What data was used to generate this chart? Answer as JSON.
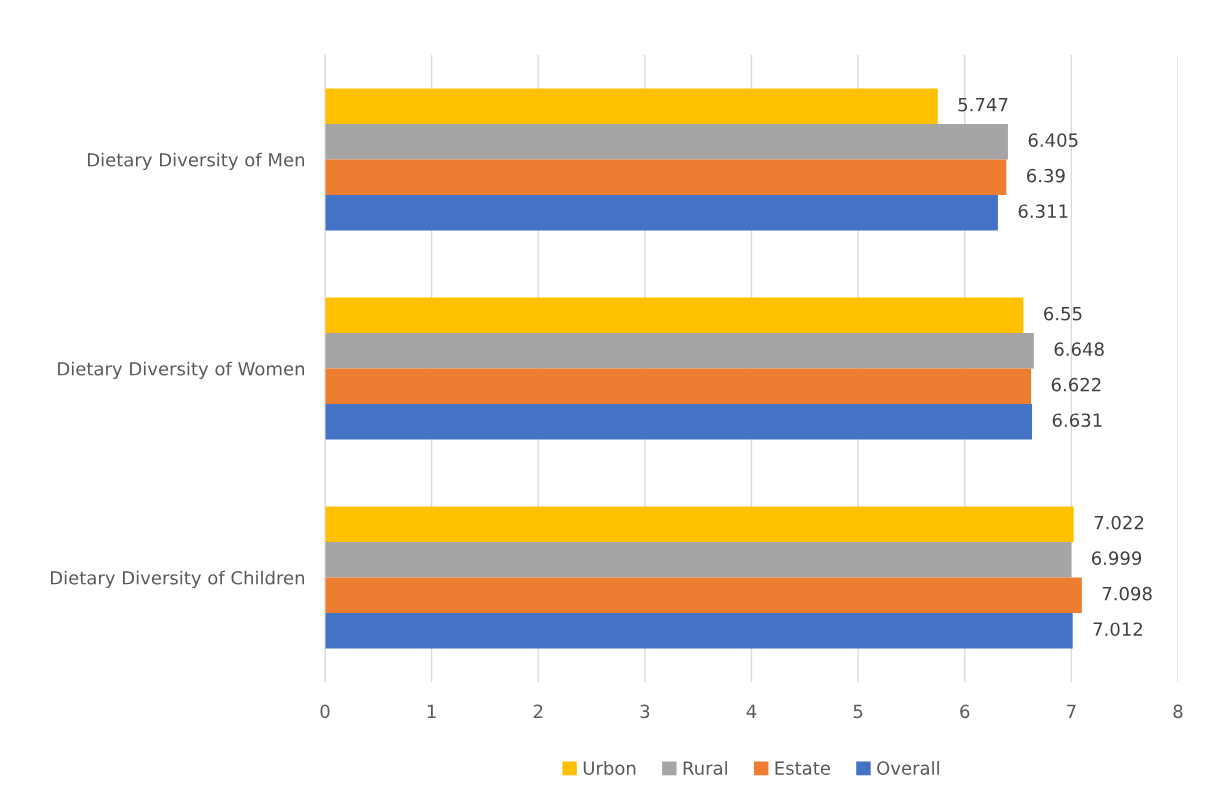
{
  "chart_data": {
    "type": "bar",
    "orientation": "horizontal",
    "categories": [
      "Dietary Diversity of Men",
      "Dietary Diversity of Women",
      "Dietary Diversity of Children"
    ],
    "series": [
      {
        "name": "Urbon",
        "color": "#ffc000",
        "values": [
          5.747,
          6.55,
          7.022
        ]
      },
      {
        "name": "Rural",
        "color": "#a5a5a5",
        "values": [
          6.405,
          6.648,
          6.999
        ]
      },
      {
        "name": "Estate",
        "color": "#ed7d31",
        "values": [
          6.39,
          6.622,
          7.098
        ]
      },
      {
        "name": "Overall",
        "color": "#4472c4",
        "values": [
          6.311,
          6.631,
          7.012
        ]
      }
    ],
    "xlim": [
      0,
      8
    ],
    "xticks": [
      0,
      1,
      2,
      3,
      4,
      5,
      6,
      7,
      8
    ],
    "grid": "x",
    "legend": "bottom",
    "data_labels": true
  }
}
